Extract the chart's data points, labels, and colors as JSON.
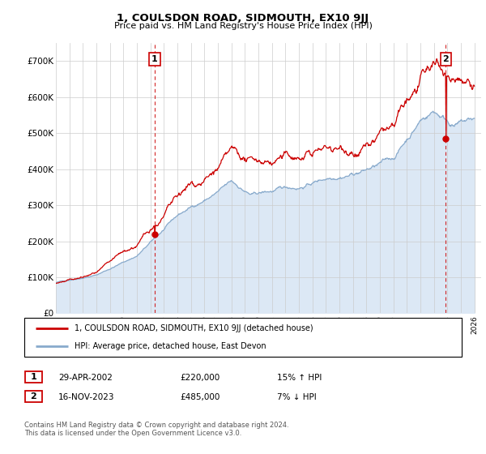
{
  "title": "1, COULSDON ROAD, SIDMOUTH, EX10 9JJ",
  "subtitle": "Price paid vs. HM Land Registry's House Price Index (HPI)",
  "ylim": [
    0,
    750000
  ],
  "yticks": [
    0,
    100000,
    200000,
    300000,
    400000,
    500000,
    600000,
    700000
  ],
  "ytick_labels": [
    "£0",
    "£100K",
    "£200K",
    "£300K",
    "£400K",
    "£500K",
    "£600K",
    "£700K"
  ],
  "xlim_start": 1995.0,
  "xlim_end": 2026.5,
  "transaction1": {
    "date_num": 2002.32,
    "price": 220000,
    "label": "1",
    "date_str": "29-APR-2002",
    "pct": "15% ↑ HPI"
  },
  "transaction2": {
    "date_num": 2023.88,
    "price": 485000,
    "label": "2",
    "date_str": "16-NOV-2023",
    "pct": "7% ↓ HPI"
  },
  "red_color": "#cc0000",
  "blue_color": "#88aacc",
  "blue_fill_color": "#dce8f5",
  "legend_entry1": "1, COULSDON ROAD, SIDMOUTH, EX10 9JJ (detached house)",
  "legend_entry2": "HPI: Average price, detached house, East Devon",
  "table_row1": [
    "1",
    "29-APR-2002",
    "£220,000",
    "15% ↑ HPI"
  ],
  "table_row2": [
    "2",
    "16-NOV-2023",
    "£485,000",
    "7% ↓ HPI"
  ],
  "footnote": "Contains HM Land Registry data © Crown copyright and database right 2024.\nThis data is licensed under the Open Government Licence v3.0.",
  "background_color": "#ffffff",
  "plot_bg_color": "#ffffff",
  "grid_color": "#cccccc",
  "hpi_seed": 42,
  "n_points": 800
}
